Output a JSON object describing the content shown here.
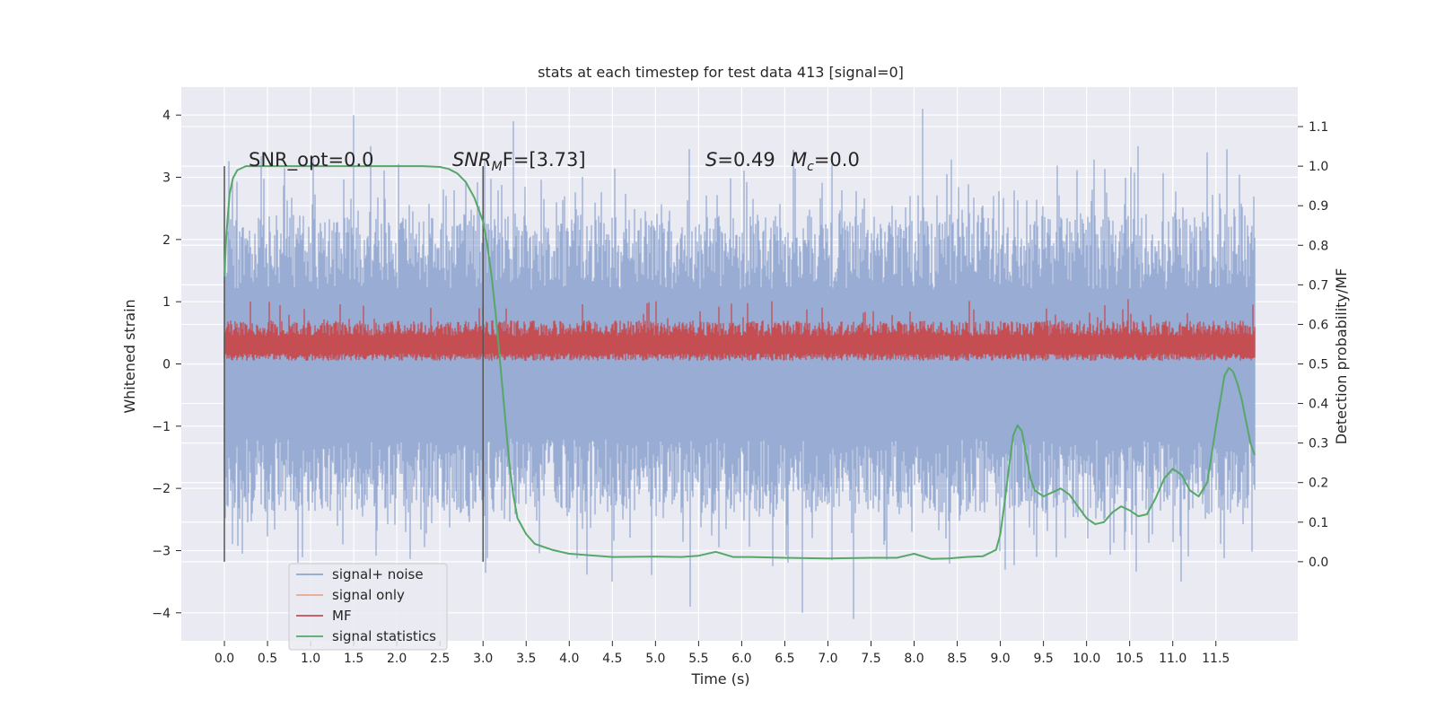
{
  "chart_data": {
    "type": "line",
    "title": "stats at each timestep for test data 413 [signal=0]",
    "xlabel": "Time (s)",
    "ylabel": "Whitened strain",
    "ylabel_right": "Detection probability/MF",
    "xlim": [
      -0.5,
      12.45
    ],
    "ylim": [
      -4.45,
      4.45
    ],
    "ylim_right": [
      -0.2,
      1.2
    ],
    "x_ticks": [
      "0.0",
      "0.5",
      "1.0",
      "1.5",
      "2.0",
      "2.5",
      "3.0",
      "3.5",
      "4.0",
      "4.5",
      "5.0",
      "5.5",
      "6.0",
      "6.5",
      "7.0",
      "7.5",
      "8.0",
      "8.5",
      "9.0",
      "9.5",
      "10.0",
      "10.5",
      "11.0",
      "11.5"
    ],
    "y_ticks_left": [
      "4",
      "3",
      "2",
      "1",
      "0",
      "−1",
      "−2",
      "−3",
      "−4"
    ],
    "y_ticks_right": [
      "1.1",
      "1.0",
      "0.9",
      "0.8",
      "0.7",
      "0.6",
      "0.5",
      "0.4",
      "0.3",
      "0.2",
      "0.1",
      "0.0"
    ],
    "grid": true,
    "legend_placement": "lower-left",
    "annotations": {
      "snr_opt": "SNR_opt=0.0",
      "snr_mf_var": "SNR",
      "snr_mf_sub": "M",
      "snr_mf_rest": "F=[3.73]",
      "s_var": "S",
      "s_rest": "=0.49",
      "mc_var": "M",
      "mc_sub": "c",
      "mc_rest": "=0.0"
    },
    "vertical_markers_x": [
      0.0,
      3.0
    ],
    "series": [
      {
        "name": "signal+ noise",
        "color": "#8fa5d0",
        "axis": "left",
        "x_range": [
          0.0,
          11.95
        ],
        "envelope_typical": 2.4,
        "peaks": [
          [
            1.5,
            4.0
          ],
          [
            3.35,
            3.9
          ],
          [
            8.1,
            4.1
          ],
          [
            7.3,
            -4.1
          ],
          [
            5.4,
            -3.9
          ],
          [
            6.7,
            -4.0
          ],
          [
            4.5,
            -3.5
          ],
          [
            11.1,
            -3.5
          ],
          [
            1.7,
            3.5
          ],
          [
            10.6,
            3.5
          ],
          [
            11.4,
            3.4
          ],
          [
            12.0,
            -1.6
          ]
        ]
      },
      {
        "name": "signal only",
        "color": "#e8a98a",
        "axis": "left",
        "values": []
      },
      {
        "name": "MF",
        "color": "#c44e52",
        "axis": "left",
        "x_range": [
          0.0,
          11.95
        ],
        "band": [
          0.05,
          0.65
        ],
        "max": 1.05
      },
      {
        "name": "signal statistics",
        "color": "#55a868",
        "axis": "right",
        "x": [
          0.0,
          0.02,
          0.06,
          0.1,
          0.15,
          0.25,
          0.4,
          0.6,
          1.0,
          1.5,
          2.0,
          2.3,
          2.5,
          2.6,
          2.7,
          2.8,
          2.9,
          3.0,
          3.05,
          3.1,
          3.15,
          3.2,
          3.25,
          3.3,
          3.35,
          3.4,
          3.5,
          3.6,
          3.8,
          4.0,
          4.5,
          5.0,
          5.3,
          5.5,
          5.7,
          5.9,
          6.1,
          6.5,
          7.0,
          7.5,
          7.8,
          8.0,
          8.2,
          8.4,
          8.6,
          8.8,
          8.95,
          9.0,
          9.05,
          9.1,
          9.15,
          9.2,
          9.25,
          9.3,
          9.35,
          9.4,
          9.5,
          9.6,
          9.7,
          9.8,
          9.9,
          10.0,
          10.1,
          10.2,
          10.3,
          10.4,
          10.5,
          10.6,
          10.7,
          10.8,
          10.9,
          11.0,
          11.1,
          11.2,
          11.3,
          11.4,
          11.5,
          11.6,
          11.65,
          11.7,
          11.75,
          11.8,
          11.9,
          11.95
        ],
        "y": [
          0.72,
          0.82,
          0.93,
          0.97,
          0.99,
          1.0,
          1.0,
          1.0,
          1.0,
          1.0,
          1.0,
          1.0,
          0.998,
          0.993,
          0.982,
          0.96,
          0.92,
          0.86,
          0.8,
          0.72,
          0.62,
          0.5,
          0.38,
          0.26,
          0.17,
          0.11,
          0.07,
          0.045,
          0.03,
          0.02,
          0.012,
          0.013,
          0.012,
          0.015,
          0.025,
          0.012,
          0.012,
          0.01,
          0.008,
          0.01,
          0.01,
          0.02,
          0.007,
          0.008,
          0.012,
          0.014,
          0.03,
          0.07,
          0.15,
          0.24,
          0.32,
          0.345,
          0.33,
          0.27,
          0.21,
          0.18,
          0.165,
          0.175,
          0.185,
          0.17,
          0.14,
          0.11,
          0.095,
          0.1,
          0.125,
          0.14,
          0.13,
          0.115,
          0.12,
          0.16,
          0.21,
          0.235,
          0.22,
          0.18,
          0.165,
          0.2,
          0.34,
          0.47,
          0.49,
          0.48,
          0.45,
          0.41,
          0.3,
          0.27
        ]
      }
    ]
  }
}
